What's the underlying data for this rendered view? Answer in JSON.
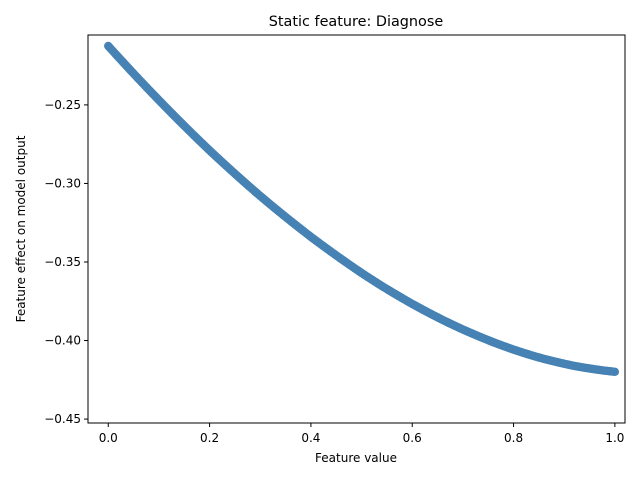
{
  "chart_data": {
    "type": "scatter",
    "title": "Static feature: Diagnose",
    "xlabel": "Feature value",
    "ylabel": "Feature effect on model output",
    "xlim": [
      -0.04,
      1.02
    ],
    "ylim": [
      -0.4525,
      -0.2055
    ],
    "xticks": [
      0.0,
      0.2,
      0.4,
      0.6,
      0.8,
      1.0
    ],
    "xtick_labels": [
      "0.0",
      "0.2",
      "0.4",
      "0.6",
      "0.8",
      "1.0"
    ],
    "yticks": [
      -0.25,
      -0.3,
      -0.35,
      -0.4,
      -0.45
    ],
    "ytick_labels": [
      "−0.25",
      "−0.30",
      "−0.35",
      "−0.40",
      "−0.45"
    ],
    "grid": false,
    "marker_color": "#4682b4",
    "series": [
      {
        "x": [
          0.0,
          0.02,
          0.04,
          0.06,
          0.08,
          0.1,
          0.12,
          0.14,
          0.16,
          0.18,
          0.2,
          0.22,
          0.24,
          0.26,
          0.28,
          0.3,
          0.32,
          0.34,
          0.36,
          0.38,
          0.4,
          0.42,
          0.44,
          0.46,
          0.48,
          0.5,
          0.52,
          0.54,
          0.56,
          0.58,
          0.6,
          0.62,
          0.64,
          0.66,
          0.68,
          0.7,
          0.72,
          0.74,
          0.76,
          0.78,
          0.8,
          0.82,
          0.84,
          0.86,
          0.88,
          0.9,
          0.92,
          0.94,
          0.96,
          0.98,
          1.0
        ],
        "y": [
          -0.2125,
          -0.2196,
          -0.2266,
          -0.2335,
          -0.2403,
          -0.247,
          -0.2536,
          -0.2601,
          -0.2665,
          -0.2728,
          -0.279,
          -0.285,
          -0.2909,
          -0.2967,
          -0.3024,
          -0.308,
          -0.3134,
          -0.3187,
          -0.3239,
          -0.329,
          -0.334,
          -0.3388,
          -0.3435,
          -0.3481,
          -0.3526,
          -0.357,
          -0.3612,
          -0.3653,
          -0.3692,
          -0.373,
          -0.3767,
          -0.3802,
          -0.3836,
          -0.3869,
          -0.39,
          -0.393,
          -0.3958,
          -0.3985,
          -0.4011,
          -0.4035,
          -0.4058,
          -0.4079,
          -0.4099,
          -0.4117,
          -0.4133,
          -0.4148,
          -0.4162,
          -0.4173,
          -0.4183,
          -0.4192,
          -0.4199
        ]
      }
    ]
  }
}
